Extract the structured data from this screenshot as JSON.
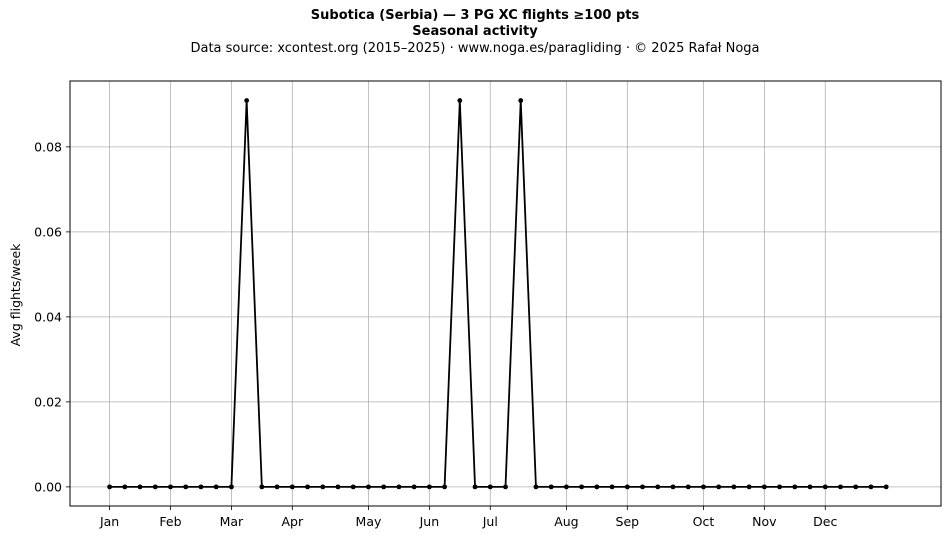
{
  "header": {
    "title": "Subotica (Serbia)  —  3 PG XC flights ≥100 pts",
    "subtitle": "Seasonal activity",
    "source": "Data source: xcontest.org (2015–2025)  ·  www.noga.es/paragliding  ·  © 2025 Rafał Noga"
  },
  "chart_data": {
    "type": "line",
    "title": "Subotica (Serbia)  —  3 PG XC flights ≥100 pts",
    "subtitle": "Seasonal activity",
    "xlabel": "",
    "ylabel": "Avg flights/week",
    "x": [
      1,
      2,
      3,
      4,
      5,
      6,
      7,
      8,
      9,
      10,
      11,
      12,
      13,
      14,
      15,
      16,
      17,
      18,
      19,
      20,
      21,
      22,
      23,
      24,
      25,
      26,
      27,
      28,
      29,
      30,
      31,
      32,
      33,
      34,
      35,
      36,
      37,
      38,
      39,
      40,
      41,
      42,
      43,
      44,
      45,
      46,
      47,
      48,
      49,
      50,
      51,
      52
    ],
    "values": [
      0,
      0,
      0,
      0,
      0,
      0,
      0,
      0,
      0,
      0.0909,
      0,
      0,
      0,
      0,
      0,
      0,
      0,
      0,
      0,
      0,
      0,
      0,
      0,
      0.0909,
      0,
      0,
      0,
      0.0909,
      0,
      0,
      0,
      0,
      0,
      0,
      0,
      0,
      0,
      0,
      0,
      0,
      0,
      0,
      0,
      0,
      0,
      0,
      0,
      0,
      0,
      0,
      0,
      0
    ],
    "month_ticks": [
      {
        "label": "Jan",
        "x": 1
      },
      {
        "label": "Feb",
        "x": 5
      },
      {
        "label": "Mar",
        "x": 9
      },
      {
        "label": "Apr",
        "x": 13
      },
      {
        "label": "May",
        "x": 18
      },
      {
        "label": "Jun",
        "x": 22
      },
      {
        "label": "Jul",
        "x": 26
      },
      {
        "label": "Aug",
        "x": 31
      },
      {
        "label": "Sep",
        "x": 35
      },
      {
        "label": "Oct",
        "x": 40
      },
      {
        "label": "Nov",
        "x": 44
      },
      {
        "label": "Dec",
        "x": 48
      }
    ],
    "yticks": [
      0,
      0.02,
      0.04,
      0.06,
      0.08
    ],
    "ytick_labels": [
      "0.00",
      "0.02",
      "0.04",
      "0.06",
      "0.08"
    ],
    "ylim": [
      -0.0045,
      0.0955
    ],
    "xlim": [
      -1.6,
      55.6
    ],
    "grid": true,
    "line_color": "#000000",
    "grid_color": "#b0b0b0"
  }
}
